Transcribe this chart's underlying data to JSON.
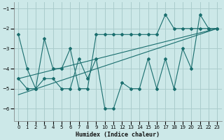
{
  "xlabel": "Humidex (Indice chaleur)",
  "background_color": "#cce8e8",
  "line_color": "#1a6e6e",
  "grid_color": "#aacccc",
  "xlim": [
    -0.5,
    23.5
  ],
  "ylim": [
    -6.6,
    -0.7
  ],
  "yticks": [
    -6,
    -5,
    -4,
    -3,
    -2,
    -1
  ],
  "xticks": [
    0,
    1,
    2,
    3,
    4,
    5,
    6,
    7,
    8,
    9,
    10,
    11,
    12,
    13,
    14,
    15,
    16,
    17,
    18,
    19,
    20,
    21,
    22,
    23
  ],
  "series_upper": {
    "x": [
      0,
      1,
      2,
      3,
      4,
      5,
      6,
      7,
      8,
      9,
      10,
      11,
      12,
      13,
      14,
      15,
      16,
      17,
      18,
      19,
      20,
      21,
      22,
      23
    ],
    "y": [
      -2.3,
      -4.0,
      -5.0,
      -2.5,
      -4.0,
      -4.0,
      -3.0,
      -5.0,
      -5.0,
      -2.3,
      -2.3,
      -2.3,
      -2.3,
      -2.3,
      -2.3,
      -2.3,
      -2.3,
      -1.3,
      -2.0,
      -2.0,
      -2.0,
      -2.0,
      -2.0,
      -2.0
    ]
  },
  "series_lower": {
    "x": [
      0,
      1,
      2,
      3,
      4,
      5,
      6,
      7,
      8,
      9,
      10,
      11,
      12,
      13,
      14,
      15,
      16,
      17,
      18,
      19,
      20,
      21,
      22,
      23
    ],
    "y": [
      -4.5,
      -5.0,
      -5.0,
      -4.5,
      -4.5,
      -5.0,
      -5.0,
      -3.5,
      -4.5,
      -3.5,
      -6.0,
      -6.0,
      -4.7,
      -5.0,
      -5.0,
      -3.5,
      -5.0,
      -3.5,
      -5.0,
      -3.0,
      -4.0,
      -1.3,
      -2.0,
      -2.0
    ]
  },
  "line1": {
    "x": [
      0,
      23
    ],
    "y": [
      -4.5,
      -2.0
    ]
  },
  "line2": {
    "x": [
      0,
      23
    ],
    "y": [
      -5.3,
      -2.0
    ]
  }
}
